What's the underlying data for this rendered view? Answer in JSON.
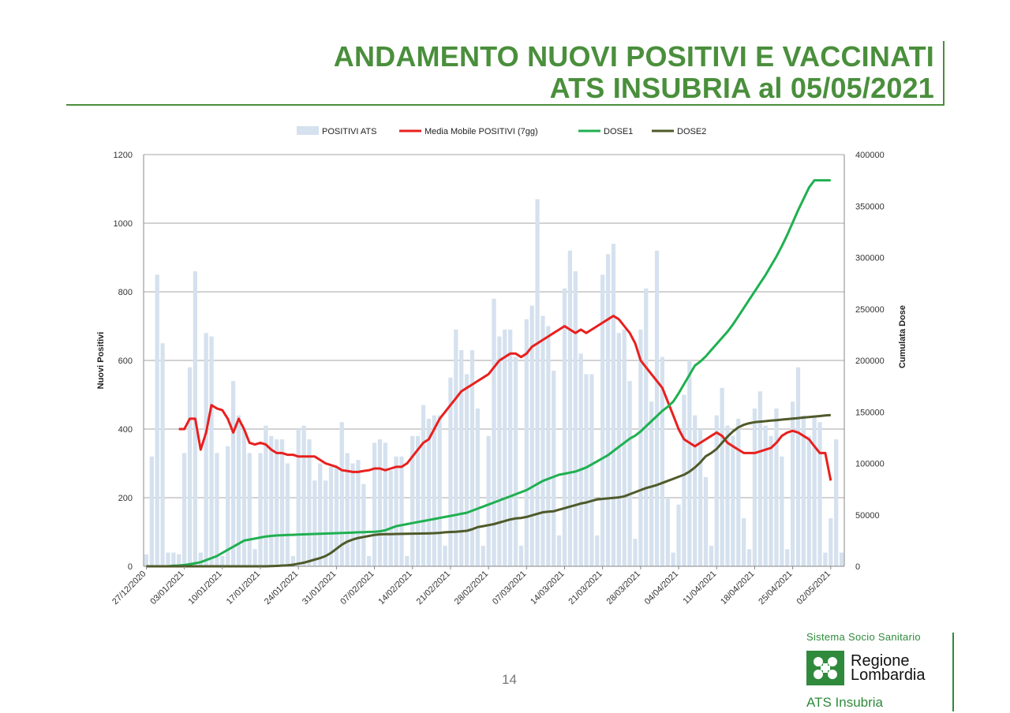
{
  "header": {
    "title_line1": "ANDAMENTO NUOVI POSITIVI E VACCINATI",
    "title_line2": "ATS INSUBRIA al 05/05/2021"
  },
  "footer": {
    "page_number": "14",
    "brand_system": "Sistema Socio Sanitario",
    "brand_region_line1": "Regione",
    "brand_region_line2": "Lombardia",
    "brand_ats": "ATS Insubria"
  },
  "colors": {
    "title_green": "#4a8f3c",
    "bars": "#d5e1ee",
    "media_mobile": "#e8201e",
    "dose1": "#1fb050",
    "dose2": "#4f5a2a"
  },
  "chart_data": {
    "type": "bar",
    "xlabel": "",
    "ylabel": "Nuovi Positivi",
    "y2label": "Cumulata Dose",
    "ylim": [
      0,
      1200
    ],
    "y2lim": [
      0,
      400000
    ],
    "yticks": [
      0,
      200,
      400,
      600,
      800,
      1000,
      1200
    ],
    "y2ticks": [
      0,
      50000,
      100000,
      150000,
      200000,
      250000,
      300000,
      350000,
      400000
    ],
    "grid": true,
    "legend_position": "top",
    "x_start": "27/12/2020",
    "x_tick_labels": [
      "27/12/2020",
      "03/01/2021",
      "10/01/2021",
      "17/01/2021",
      "24/01/2021",
      "31/01/2021",
      "07/02/2021",
      "14/02/2021",
      "21/02/2021",
      "28/02/2021",
      "07/03/2021",
      "14/03/2021",
      "21/03/2021",
      "28/03/2021",
      "04/04/2021",
      "11/04/2021",
      "18/04/2021",
      "25/04/2021",
      "02/05/2021"
    ],
    "series": [
      {
        "name": "POSITIVI ATS",
        "type": "bar",
        "axis": "left",
        "values": [
          35,
          320,
          850,
          650,
          40,
          40,
          35,
          330,
          580,
          860,
          40,
          680,
          670,
          330,
          30,
          350,
          540,
          440,
          400,
          330,
          50,
          330,
          410,
          380,
          370,
          370,
          300,
          30,
          400,
          410,
          370,
          250,
          300,
          250,
          290,
          290,
          420,
          330,
          300,
          310,
          240,
          30,
          360,
          370,
          360,
          280,
          320,
          320,
          30,
          380,
          380,
          470,
          430,
          440,
          440,
          60,
          550,
          690,
          630,
          560,
          630,
          460,
          60,
          380,
          780,
          670,
          690,
          690,
          610,
          60,
          720,
          760,
          1070,
          730,
          700,
          570,
          90,
          810,
          920,
          860,
          620,
          560,
          560,
          90,
          850,
          910,
          940,
          680,
          690,
          540,
          80,
          690,
          810,
          480,
          920,
          610,
          200,
          40,
          180,
          500,
          600,
          440,
          400,
          260,
          60,
          440,
          520,
          410,
          380,
          430,
          140,
          50,
          460,
          510,
          410,
          380,
          460,
          320,
          50,
          480,
          580,
          440,
          380,
          440,
          420,
          40,
          140,
          370,
          40
        ]
      },
      {
        "name": "Media Mobile POSITIVI (7gg)",
        "type": "line",
        "axis": "left",
        "values": [
          null,
          null,
          null,
          null,
          null,
          null,
          400,
          400,
          430,
          430,
          340,
          390,
          470,
          460,
          455,
          430,
          390,
          430,
          400,
          360,
          355,
          360,
          355,
          340,
          330,
          330,
          325,
          325,
          320,
          320,
          320,
          320,
          310,
          300,
          295,
          290,
          280,
          278,
          275,
          275,
          278,
          280,
          285,
          285,
          280,
          285,
          290,
          290,
          300,
          320,
          340,
          360,
          370,
          400,
          430,
          450,
          470,
          490,
          510,
          520,
          530,
          540,
          550,
          560,
          580,
          600,
          610,
          620,
          620,
          610,
          620,
          640,
          650,
          660,
          670,
          680,
          690,
          700,
          690,
          680,
          690,
          680,
          690,
          700,
          710,
          720,
          730,
          720,
          700,
          680,
          650,
          600,
          580,
          560,
          540,
          520,
          480,
          440,
          400,
          370,
          360,
          350,
          360,
          370,
          380,
          390,
          380,
          360,
          350,
          340,
          330,
          330,
          330,
          335,
          340,
          345,
          360,
          380,
          390,
          395,
          390,
          380,
          370,
          350,
          330,
          330,
          250
        ]
      },
      {
        "name": "DOSE1",
        "type": "line",
        "axis": "right",
        "values": [
          0,
          0,
          0,
          0,
          0,
          500,
          800,
          1200,
          2000,
          3000,
          4000,
          6000,
          8000,
          10000,
          13000,
          16000,
          19000,
          22000,
          25000,
          26000,
          27000,
          28000,
          29000,
          29500,
          30000,
          30200,
          30400,
          30600,
          30800,
          31000,
          31200,
          31400,
          31600,
          31800,
          32000,
          32200,
          32400,
          32600,
          32800,
          33000,
          33200,
          33400,
          33600,
          34000,
          35000,
          37000,
          39000,
          40000,
          41000,
          42000,
          43000,
          44000,
          45000,
          46000,
          47000,
          48000,
          49000,
          50000,
          51000,
          52000,
          54000,
          56000,
          58000,
          60000,
          62000,
          64000,
          66000,
          68000,
          70000,
          72000,
          74000,
          77000,
          80000,
          83000,
          85000,
          87000,
          89000,
          90000,
          91000,
          92000,
          94000,
          96000,
          99000,
          102000,
          105000,
          108000,
          112000,
          116000,
          120000,
          124000,
          127000,
          131000,
          136000,
          141000,
          146000,
          151000,
          155000,
          160000,
          168000,
          177000,
          186000,
          195000,
          199000,
          204000,
          210000,
          216000,
          222000,
          228000,
          235000,
          243000,
          251000,
          259000,
          267000,
          275000,
          283000,
          292000,
          301000,
          311000,
          322000,
          334000,
          346000,
          357000,
          368000,
          375000,
          375000,
          375000,
          375000
        ]
      },
      {
        "name": "DOSE2",
        "type": "line",
        "axis": "right",
        "values": [
          0,
          0,
          0,
          0,
          0,
          0,
          0,
          0,
          0,
          0,
          0,
          0,
          0,
          0,
          0,
          0,
          0,
          0,
          0,
          0,
          0,
          0,
          0,
          200,
          400,
          700,
          1000,
          1500,
          2500,
          3500,
          5000,
          6500,
          8000,
          10000,
          13000,
          17000,
          21000,
          24000,
          26000,
          27500,
          28500,
          29500,
          30500,
          31000,
          31200,
          31300,
          31400,
          31500,
          31600,
          31700,
          31800,
          31900,
          32000,
          32200,
          32500,
          33000,
          33300,
          33600,
          34000,
          34500,
          36000,
          38000,
          39000,
          40000,
          41000,
          42500,
          44000,
          45500,
          46500,
          47000,
          48000,
          49500,
          51000,
          52500,
          53000,
          53500,
          55000,
          56500,
          58000,
          59500,
          61000,
          62000,
          63500,
          65000,
          65500,
          66000,
          66500,
          67000,
          68000,
          70000,
          72000,
          74000,
          76000,
          77500,
          79000,
          81000,
          83000,
          85000,
          87000,
          89000,
          92000,
          96000,
          101000,
          107000,
          110000,
          114000,
          120000,
          126000,
          131000,
          135000,
          137500,
          139000,
          140000,
          140500,
          141000,
          141500,
          142000,
          142500,
          143000,
          143500,
          144000,
          144500,
          145000,
          145500,
          146000,
          146500,
          147000
        ]
      }
    ]
  }
}
